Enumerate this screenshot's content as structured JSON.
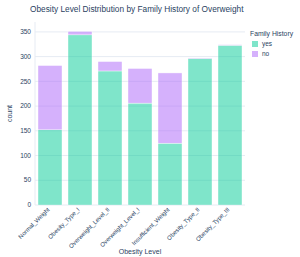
{
  "chart_data": {
    "type": "bar",
    "title": "Obesity Level Distribution by Family History of Overweight",
    "x_label": "Obesity Level",
    "y_label": "count",
    "legend_title": "Family History",
    "categories": [
      "Normal_Weight",
      "Obesity_Type_I",
      "Overweight_Level_II",
      "Overweight_Level_I",
      "Insufficient_Weight",
      "Obesity_Type_II",
      "Obesity_Type_III"
    ],
    "series": [
      {
        "name": "yes",
        "color": "#00cc96",
        "values": [
          152,
          344,
          271,
          206,
          125,
          296,
          323
        ]
      },
      {
        "name": "no",
        "color": "#ab63fa",
        "values": [
          130,
          7,
          19,
          70,
          142,
          1,
          1
        ]
      }
    ],
    "stacked": true,
    "grid": true,
    "legend": "right",
    "ylim": [
      0,
      370
    ],
    "yticks": [
      0,
      50,
      100,
      150,
      200,
      250,
      300,
      350
    ]
  }
}
